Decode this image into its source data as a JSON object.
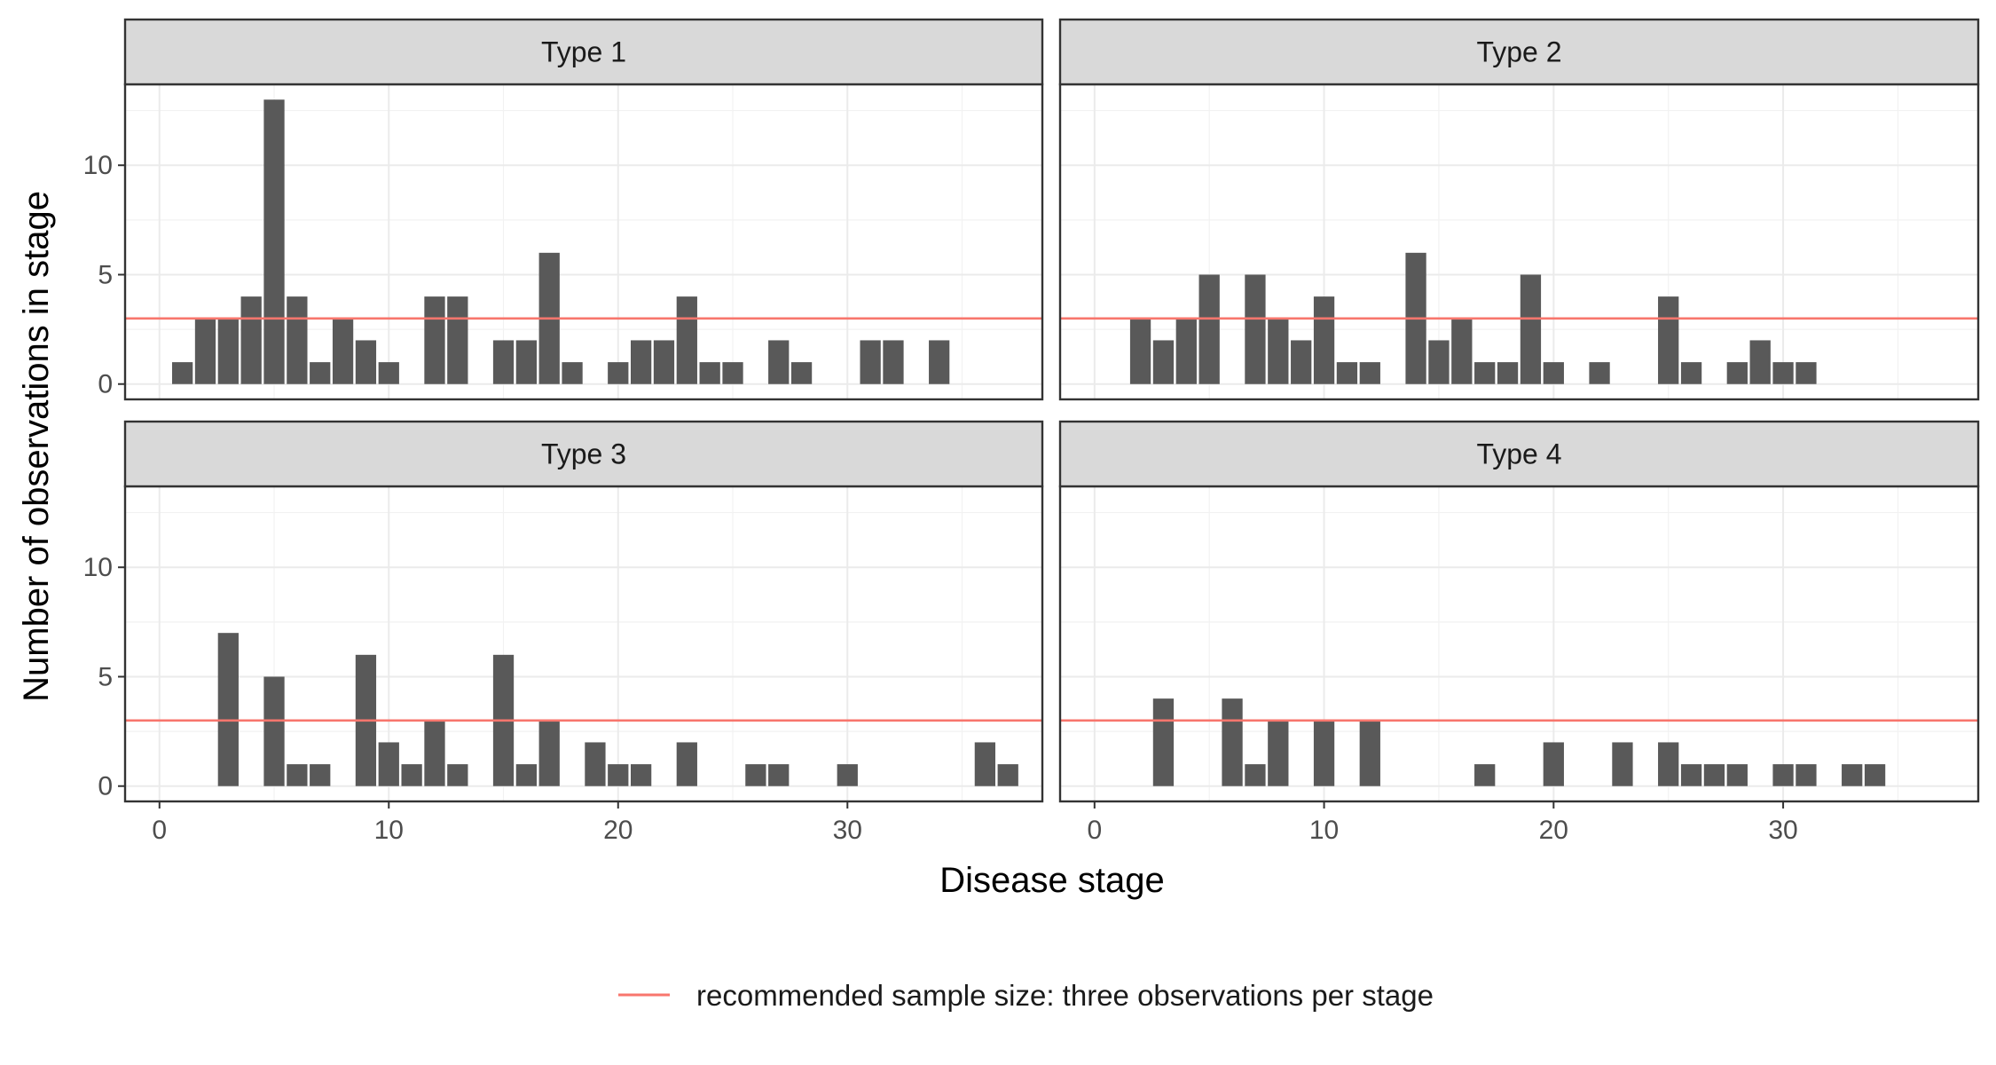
{
  "chart_data": {
    "type": "bar",
    "xlabel": "Disease stage",
    "ylabel": "Number of observations in stage",
    "xlim": [
      -1.5,
      38.5
    ],
    "ylim": [
      -0.7,
      13.7
    ],
    "x_ticks": [
      0,
      10,
      20,
      30
    ],
    "y_ticks": [
      0,
      5,
      10
    ],
    "grid": true,
    "reference_line": {
      "y": 3,
      "color": "#F8766D",
      "label": "recommended sample size: three observations per stage"
    },
    "legend_position": "bottom",
    "bar_color": "#595959",
    "panels": [
      {
        "title": "Type 1",
        "x": [
          1,
          2,
          3,
          4,
          5,
          6,
          7,
          8,
          9,
          10,
          12,
          13,
          15,
          16,
          17,
          18,
          20,
          21,
          22,
          23,
          24,
          25,
          27,
          28,
          31,
          32,
          34
        ],
        "y": [
          1,
          3,
          3,
          4,
          13,
          4,
          1,
          3,
          2,
          1,
          4,
          4,
          2,
          2,
          6,
          1,
          1,
          2,
          2,
          4,
          1,
          1,
          2,
          1,
          2,
          2,
          2
        ]
      },
      {
        "title": "Type 2",
        "x": [
          2,
          3,
          4,
          5,
          7,
          8,
          9,
          10,
          11,
          12,
          14,
          15,
          16,
          17,
          18,
          19,
          20,
          22,
          25,
          26,
          28,
          29,
          30,
          31
        ],
        "y": [
          3,
          2,
          3,
          5,
          5,
          3,
          2,
          4,
          1,
          1,
          6,
          2,
          3,
          1,
          1,
          5,
          1,
          1,
          4,
          1,
          1,
          2,
          1,
          1
        ]
      },
      {
        "title": "Type 3",
        "x": [
          3,
          5,
          6,
          7,
          9,
          10,
          11,
          12,
          13,
          15,
          16,
          17,
          19,
          20,
          21,
          23,
          26,
          27,
          30,
          36,
          37
        ],
        "y": [
          7,
          5,
          1,
          1,
          6,
          2,
          1,
          3,
          1,
          6,
          1,
          3,
          2,
          1,
          1,
          2,
          1,
          1,
          1,
          2,
          1
        ]
      },
      {
        "title": "Type 4",
        "x": [
          3,
          6,
          7,
          8,
          10,
          12,
          17,
          20,
          23,
          25,
          26,
          27,
          28,
          30,
          31,
          33,
          34
        ],
        "y": [
          4,
          4,
          1,
          3,
          3,
          3,
          1,
          2,
          2,
          2,
          1,
          1,
          1,
          1,
          1,
          1,
          1
        ]
      }
    ]
  }
}
